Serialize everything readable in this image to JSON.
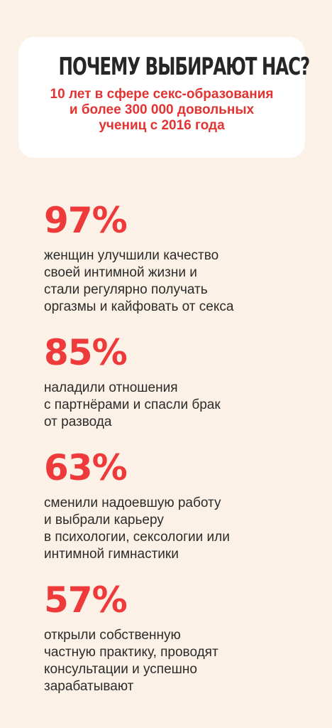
{
  "header": {
    "title": "ПОЧЕМУ ВЫБИРАЮТ НАС?",
    "subtitle_lines": [
      "10 лет в сфере секс-образования",
      "и более 300 000 довольных",
      "учениц с 2016 года"
    ]
  },
  "stats": [
    {
      "value": "97%",
      "lines": [
        "женщин улучшили качество",
        "своей интимной жизни и",
        "стали регулярно получать",
        "оргазмы и кайфовать от секса"
      ]
    },
    {
      "value": "85%",
      "lines": [
        "наладили отношения",
        "с партнёрами и спасли брак",
        "от развода"
      ]
    },
    {
      "value": "63%",
      "lines": [
        "сменили надоевшую работу",
        "и выбрали карьеру",
        "в психологии, сексологии или",
        "интимной гимнастики"
      ]
    },
    {
      "value": "57%",
      "lines": [
        "открыли собственную",
        "частную практику, проводят",
        "консультации и успешно",
        "зарабатывают"
      ]
    }
  ],
  "colors": {
    "background": "#fbf1e6",
    "card": "#ffffff",
    "accent_red": "#ee3a3a",
    "subtitle_red": "#e23333",
    "text_dark": "#2b2b2b"
  }
}
